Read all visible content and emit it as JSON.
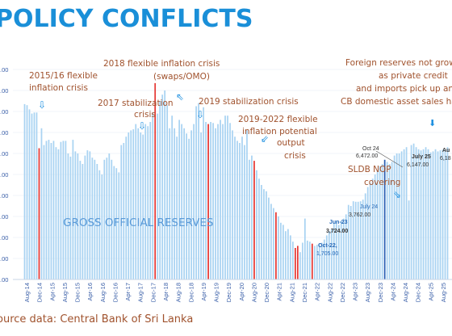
{
  "slide": {
    "title": "POLICY CONFLICTS",
    "source": "ource data: Central Bank of Sri Lanka"
  },
  "colors": {
    "bar": "#a9d3f2",
    "highlight": "#e53935",
    "blue_bar": "#2b5fb3",
    "title": "#1a8fd8",
    "annotation": "#a0522d"
  },
  "chart_data": {
    "type": "bar",
    "series": [
      {
        "name": "GROSS OFFICIAL RESERVES"
      }
    ],
    "y_tick_labels": [
      ".00",
      ".00",
      ".00",
      ".00",
      ".00",
      ".00",
      ".00",
      ".00",
      ".00",
      ".00",
      ".00"
    ],
    "x_tick_labels": [
      "Aug-14",
      "Dec-14",
      "Apr-15",
      "Aug-15",
      "Dec-15",
      "Apr-16",
      "Aug-16",
      "Dec-16",
      "Apr-17",
      "Aug-17",
      "Dec-17",
      "Apr-18",
      "Aug-18",
      "Dec-18",
      "Apr-19",
      "Aug-19",
      "Dec-19",
      "Apr-20",
      "Aug-20",
      "Dec-20",
      "Apr-21",
      "Aug-21",
      "Dec-21",
      "Apr-22",
      "Aug-22",
      "Dec-22",
      "Apr-23",
      "Aug-23",
      "Dec-23",
      "Apr-24",
      "Aug-24",
      "Dec-24",
      "Apr-25",
      "Aug-25"
    ],
    "ylim": [
      0,
      10000
    ],
    "values": [
      8350,
      8300,
      8100,
      7900,
      7950,
      7950,
      6250,
      7200,
      6400,
      6600,
      6650,
      6500,
      6600,
      6300,
      6200,
      6550,
      6600,
      6600,
      6000,
      5850,
      6650,
      6100,
      6000,
      5650,
      5500,
      5900,
      6150,
      6100,
      5800,
      5700,
      5500,
      5200,
      5000,
      5700,
      5800,
      6000,
      5700,
      5400,
      5300,
      5100,
      6400,
      6500,
      6800,
      7000,
      7100,
      7150,
      7400,
      7200,
      7000,
      6900,
      7400,
      7300,
      7500,
      7950,
      9350,
      7900,
      8500,
      8800,
      9000,
      8300,
      7200,
      7800,
      7200,
      6800,
      7600,
      7400,
      7200,
      6950,
      6700,
      7100,
      7400,
      8250,
      8400,
      7000,
      8200,
      7500,
      7400,
      7500,
      7450,
      7200,
      7400,
      7600,
      7400,
      7800,
      7800,
      7450,
      7100,
      6800,
      6600,
      6500,
      6800,
      6400,
      7100,
      5700,
      5900,
      5650,
      5200,
      4800,
      4500,
      4300,
      4200,
      3900,
      3600,
      3400,
      3200,
      3000,
      2700,
      2600,
      2300,
      2400,
      2100,
      1800,
      1500,
      1600,
      1300,
      1750,
      2900,
      1850,
      1800,
      1705,
      1600,
      1650,
      1700,
      1750,
      1900,
      2100,
      2300,
      2400,
      2700,
      2800,
      2600,
      2800,
      2900,
      3100,
      3550,
      3500,
      3724,
      3700,
      3700,
      3724,
      3800,
      4100,
      4400,
      4600,
      4800,
      5000,
      5200,
      5400,
      5500,
      5700,
      5600,
      5500,
      5600,
      5900,
      6000,
      6000,
      6100,
      6200,
      6300,
      3762,
      6400,
      6472,
      6300,
      6200,
      6147,
      6200,
      6300,
      6200,
      6050,
      6100,
      6200,
      6100,
      6150,
      6180,
      6200,
      6300
    ],
    "highlighted_indexes": [
      6,
      54,
      76,
      95,
      104,
      112,
      113,
      119
    ],
    "blue_indexes": [
      149
    ],
    "data_labels": [
      {
        "date": "Oct 24",
        "value": "6,472.00"
      },
      {
        "date": "July 25",
        "value": "6,147.00"
      },
      {
        "date": "Au",
        "value": "6,18"
      },
      {
        "date": "July 24",
        "value": "3,762.00"
      },
      {
        "date": "Jun-23",
        "value": "3,724.00"
      },
      {
        "date": "Oct-22,",
        "value": "1,705.00"
      }
    ],
    "annotations": [
      {
        "line1": "2015/16 flexible",
        "line2": "inflation crisis"
      },
      {
        "line1": "2018 flexible inflation crisis",
        "line2": "(swaps/OMO)"
      },
      {
        "line1": "2017 stabilization",
        "line2": "crisis"
      },
      {
        "line1": "2019 stabilization crisis",
        "line2": ""
      },
      {
        "line1": "2019-2022 flexible",
        "line2": "inflation potential",
        "line3": "output",
        "line4": "crisis"
      },
      {
        "line1": "SLDB NOP",
        "line2": "covering"
      },
      {
        "line1": "Foreign reserves not growing",
        "line2": "as private credit",
        "line3": "and imports pick up and",
        "line4": "CB domestic asset sales halted"
      }
    ]
  }
}
